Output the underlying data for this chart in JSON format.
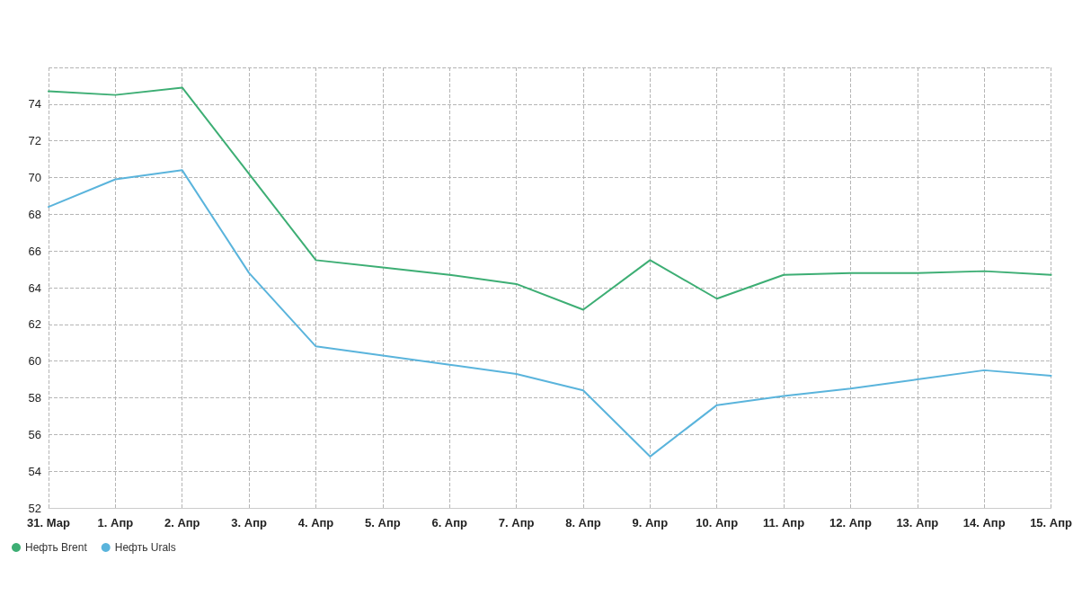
{
  "chart_data": {
    "type": "line",
    "categories": [
      "31. Мар",
      "1. Апр",
      "2. Апр",
      "3. Апр",
      "4. Апр",
      "5. Апр",
      "6. Апр",
      "7. Апр",
      "8. Апр",
      "9. Апр",
      "10. Апр",
      "11. Апр",
      "12. Апр",
      "13. Апр",
      "14. Апр",
      "15. Апр"
    ],
    "series": [
      {
        "name": "Нефть Brent",
        "color": "#3dae74",
        "values": [
          74.7,
          74.5,
          74.9,
          70.2,
          65.5,
          65.1,
          64.7,
          64.2,
          62.8,
          65.5,
          63.4,
          64.7,
          64.8,
          64.8,
          64.9,
          64.7
        ]
      },
      {
        "name": "Нефть Urals",
        "color": "#5ab4dc",
        "values": [
          68.4,
          69.9,
          70.4,
          64.8,
          60.8,
          60.3,
          59.8,
          59.3,
          58.4,
          54.8,
          57.6,
          58.1,
          58.5,
          59.0,
          59.5,
          59.2
        ]
      }
    ],
    "ylim": [
      52,
      76
    ],
    "yticks": [
      52,
      54,
      56,
      58,
      60,
      62,
      64,
      66,
      68,
      70,
      72,
      74,
      {
        "value": 76,
        "label": null
      }
    ],
    "grid": true,
    "legend": "bottom left",
    "marker": "none",
    "line_style": "solid"
  }
}
